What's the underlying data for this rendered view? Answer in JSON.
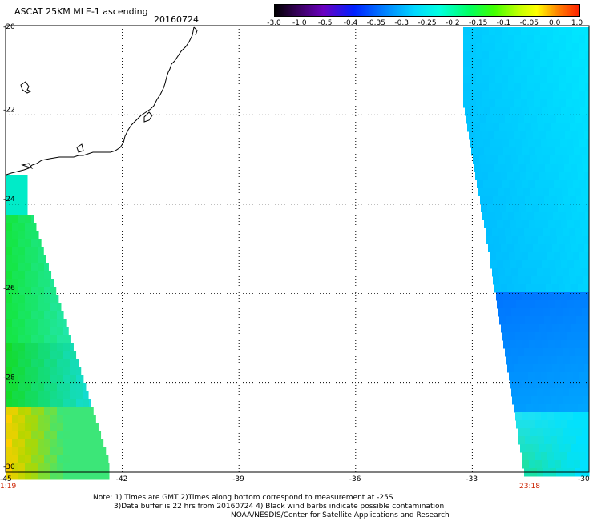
{
  "header": {
    "title": "ASCAT 25KM MLE-1 ascending",
    "date": "20160724"
  },
  "colorbar": {
    "labels": [
      "-3.0",
      "-1.0",
      "-0.5",
      "-0.4",
      "-0.35",
      "-0.3",
      "-0.25",
      "-0.2",
      "-0.15",
      "-0.1",
      "-0.05",
      "0.0",
      "1.0"
    ]
  },
  "axes": {
    "lat_labels": [
      "-20",
      "-22",
      "-24",
      "-26",
      "-28",
      "-30"
    ],
    "lon_labels": [
      "-45",
      "-42",
      "-39",
      "-36",
      "-33",
      "-30"
    ],
    "lat_range": [
      -30,
      -20
    ],
    "lon_range": [
      -45,
      -30
    ],
    "grid": "dotted"
  },
  "times": {
    "left": "1:19",
    "right": "23:18"
  },
  "notes": {
    "line1": "Note: 1) Times are GMT 2)Times along bottom correspond to measurement at -25S",
    "line2": "3)Data buffer is 22 hrs from 20160724 4) Black wind barbs indicate possible contamination",
    "line3": "NOAA/NESDIS/Center for Satellite Applications and Research"
  },
  "colors": {
    "blue": "#0a6cff",
    "cyan": "#00f0ff",
    "green": "#00e020",
    "yellow": "#ffee00",
    "orange": "#ffaa00",
    "time_red": "#cc2200"
  }
}
